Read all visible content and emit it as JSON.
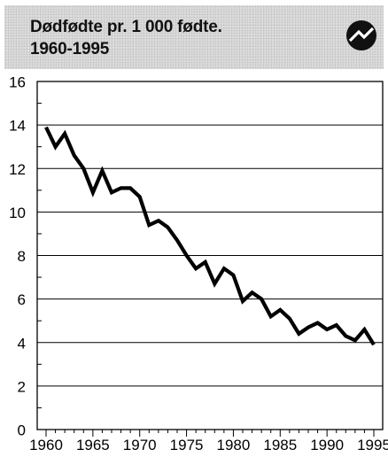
{
  "chart_data": {
    "type": "line",
    "title_lines": [
      "Dødfødte pr. 1 000 fødte.",
      "1960-1995"
    ],
    "xlabel": "",
    "ylabel": "",
    "xlim": [
      1960,
      1995
    ],
    "ylim": [
      0,
      16
    ],
    "x_ticks": [
      1960,
      1965,
      1970,
      1975,
      1980,
      1985,
      1990,
      1995
    ],
    "y_ticks": [
      0,
      2,
      4,
      6,
      8,
      10,
      12,
      14,
      16
    ],
    "grid": "horizontal",
    "legend": "none",
    "series": [
      {
        "color": "#000000",
        "x": [
          1960,
          1961,
          1962,
          1963,
          1964,
          1965,
          1966,
          1967,
          1968,
          1969,
          1970,
          1971,
          1972,
          1973,
          1974,
          1975,
          1976,
          1977,
          1978,
          1979,
          1980,
          1981,
          1982,
          1983,
          1984,
          1985,
          1986,
          1987,
          1988,
          1989,
          1990,
          1991,
          1992,
          1993,
          1994,
          1995
        ],
        "y": [
          13.9,
          13.0,
          13.6,
          12.6,
          12.0,
          10.9,
          11.9,
          10.9,
          11.1,
          11.1,
          10.7,
          9.4,
          9.6,
          9.3,
          8.7,
          8.0,
          7.4,
          7.7,
          6.7,
          7.4,
          7.1,
          5.9,
          6.3,
          6.0,
          5.2,
          5.5,
          5.1,
          4.4,
          4.7,
          4.9,
          4.6,
          4.8,
          4.3,
          4.1,
          4.6,
          3.9
        ]
      }
    ]
  },
  "logo": {
    "name": "ssb-logo-icon",
    "color": "#111111"
  }
}
